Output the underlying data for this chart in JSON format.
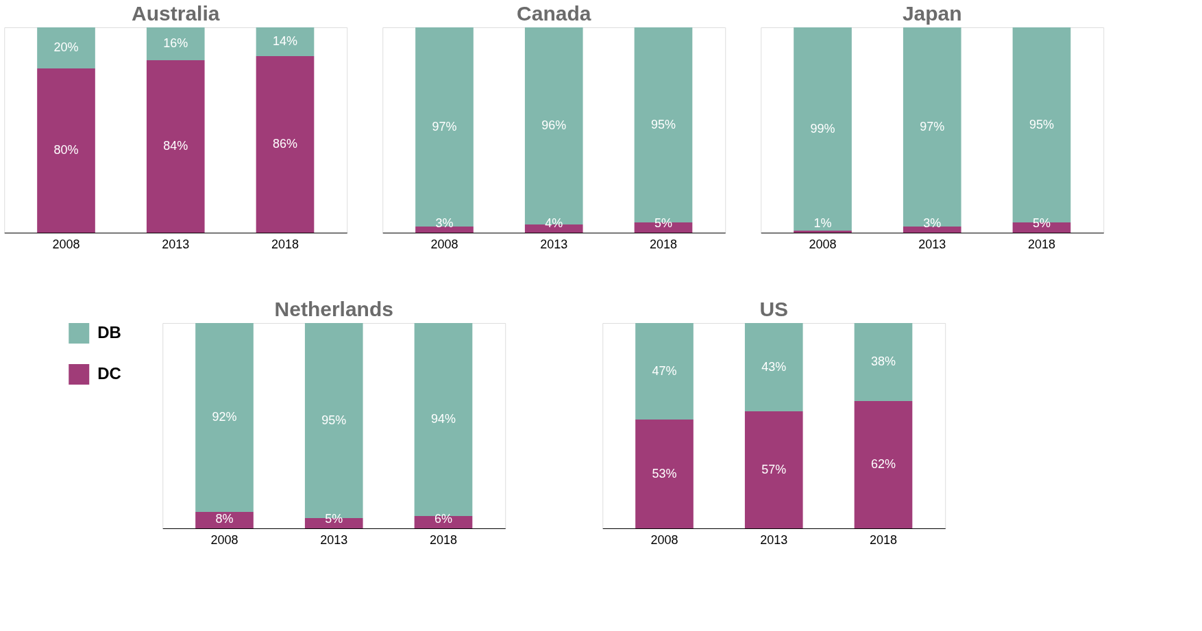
{
  "chart_data": [
    {
      "type": "bar",
      "title": "Australia",
      "categories": [
        "2008",
        "2013",
        "2018"
      ],
      "stacked": true,
      "grid": false,
      "legend": false,
      "series": [
        {
          "color": "#a03c78",
          "values": [
            80,
            84,
            86
          ],
          "value_labels": [
            "80%",
            "84%",
            "86%"
          ]
        },
        {
          "color": "#82b8ad",
          "values": [
            20,
            16,
            14
          ],
          "value_labels": [
            "20%",
            "16%",
            "14%"
          ]
        }
      ]
    },
    {
      "type": "bar",
      "title": "Canada",
      "categories": [
        "2008",
        "2013",
        "2018"
      ],
      "stacked": true,
      "grid": false,
      "legend": false,
      "series": [
        {
          "color": "#a03c78",
          "values": [
            3,
            4,
            5
          ],
          "value_labels": [
            "3%",
            "4%",
            "5%"
          ]
        },
        {
          "color": "#82b8ad",
          "values": [
            97,
            96,
            95
          ],
          "value_labels": [
            "97%",
            "96%",
            "95%"
          ]
        }
      ]
    },
    {
      "type": "bar",
      "title": "Japan",
      "categories": [
        "2008",
        "2013",
        "2018"
      ],
      "stacked": true,
      "grid": false,
      "legend": false,
      "series": [
        {
          "color": "#a03c78",
          "values": [
            1,
            3,
            5
          ],
          "value_labels": [
            "1%",
            "3%",
            "5%"
          ]
        },
        {
          "color": "#82b8ad",
          "values": [
            99,
            97,
            95
          ],
          "value_labels": [
            "99%",
            "97%",
            "95%"
          ]
        }
      ]
    },
    {
      "type": "bar",
      "title": "Netherlands",
      "categories": [
        "2008",
        "2013",
        "2018"
      ],
      "stacked": true,
      "grid": false,
      "legend": "left",
      "series": [
        {
          "name": "DC",
          "color": "#a03c78",
          "values": [
            8,
            5,
            6
          ],
          "value_labels": [
            "8%",
            "5%",
            "6%"
          ]
        },
        {
          "name": "DB",
          "color": "#82b8ad",
          "values": [
            92,
            95,
            94
          ],
          "value_labels": [
            "92%",
            "95%",
            "94%"
          ]
        }
      ]
    },
    {
      "type": "bar",
      "title": "US",
      "categories": [
        "2008",
        "2013",
        "2018"
      ],
      "stacked": true,
      "grid": false,
      "legend": false,
      "series": [
        {
          "color": "#a03c78",
          "values": [
            53,
            57,
            62
          ],
          "value_labels": [
            "53%",
            "57%",
            "62%"
          ]
        },
        {
          "color": "#82b8ad",
          "values": [
            47,
            43,
            38
          ],
          "value_labels": [
            "47%",
            "43%",
            "38%"
          ]
        }
      ]
    }
  ]
}
